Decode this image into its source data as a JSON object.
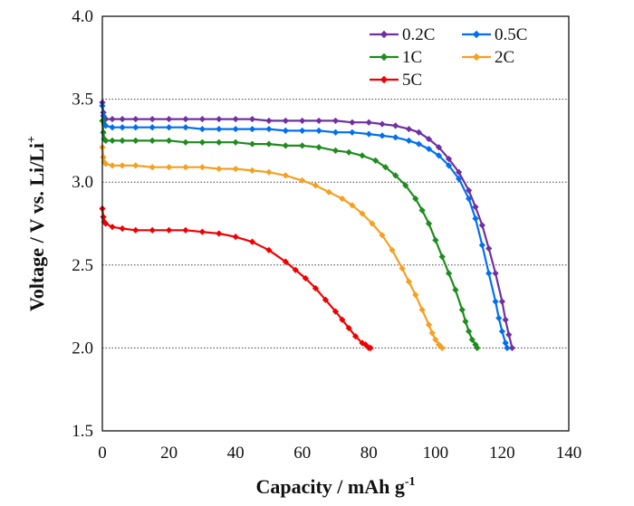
{
  "chart_data": {
    "type": "line",
    "xlabel": "Capacity / mAh g",
    "xlabel_sup": "-1",
    "ylabel": "Voltage / V vs. Li/Li",
    "ylabel_sup": "+",
    "xlim": [
      0,
      140
    ],
    "ylim": [
      1.5,
      4.0
    ],
    "xticks": [
      "0",
      "20",
      "40",
      "60",
      "80",
      "100",
      "120",
      "140"
    ],
    "yticks": [
      "1.5",
      "2.0",
      "2.5",
      "3.0",
      "3.5",
      "4.0"
    ],
    "grid": "horizontal dotted",
    "legend_position": "top-right",
    "series": [
      {
        "name": "0.2C",
        "color": "#7030A0",
        "x": [
          0,
          0.3,
          0.6,
          1,
          3,
          6,
          10,
          15,
          20,
          25,
          30,
          35,
          40,
          45,
          50,
          55,
          60,
          65,
          70,
          75,
          80,
          84,
          88,
          92,
          95,
          98,
          101,
          104,
          107,
          110,
          112,
          114,
          116,
          118,
          120,
          121,
          122,
          123
        ],
        "y": [
          3.48,
          3.42,
          3.39,
          3.38,
          3.38,
          3.38,
          3.38,
          3.38,
          3.38,
          3.38,
          3.38,
          3.38,
          3.38,
          3.38,
          3.37,
          3.37,
          3.37,
          3.37,
          3.37,
          3.36,
          3.36,
          3.35,
          3.34,
          3.32,
          3.3,
          3.26,
          3.21,
          3.14,
          3.06,
          2.95,
          2.85,
          2.74,
          2.6,
          2.45,
          2.28,
          2.17,
          2.08,
          2.0
        ]
      },
      {
        "name": "0.5C",
        "color": "#0070F0",
        "x": [
          0,
          0.3,
          0.6,
          1,
          3,
          6,
          10,
          15,
          20,
          25,
          30,
          35,
          40,
          45,
          50,
          55,
          60,
          65,
          70,
          75,
          80,
          84,
          88,
          92,
          95,
          98,
          101,
          104,
          107,
          110,
          112,
          114,
          116,
          118,
          119,
          120,
          121,
          121.5
        ],
        "y": [
          3.46,
          3.4,
          3.35,
          3.34,
          3.33,
          3.33,
          3.33,
          3.33,
          3.33,
          3.33,
          3.32,
          3.32,
          3.32,
          3.32,
          3.32,
          3.31,
          3.31,
          3.31,
          3.3,
          3.3,
          3.29,
          3.28,
          3.27,
          3.25,
          3.23,
          3.2,
          3.16,
          3.1,
          3.02,
          2.9,
          2.78,
          2.62,
          2.45,
          2.28,
          2.18,
          2.1,
          2.03,
          2.0
        ]
      },
      {
        "name": "1C",
        "color": "#1E8C1E",
        "x": [
          0,
          0.3,
          0.6,
          1,
          3,
          6,
          10,
          15,
          20,
          25,
          30,
          35,
          40,
          45,
          50,
          55,
          60,
          65,
          70,
          74,
          78,
          82,
          85,
          88,
          91,
          94,
          96,
          98,
          100,
          102,
          104,
          106,
          108,
          109,
          110,
          111,
          112,
          112.5
        ],
        "y": [
          3.37,
          3.3,
          3.26,
          3.25,
          3.25,
          3.25,
          3.25,
          3.25,
          3.25,
          3.24,
          3.24,
          3.24,
          3.24,
          3.23,
          3.23,
          3.22,
          3.22,
          3.21,
          3.19,
          3.18,
          3.16,
          3.13,
          3.09,
          3.04,
          2.98,
          2.9,
          2.83,
          2.75,
          2.65,
          2.55,
          2.45,
          2.35,
          2.23,
          2.16,
          2.1,
          2.05,
          2.02,
          2.0
        ]
      },
      {
        "name": "2C",
        "color": "#F5A020",
        "x": [
          0,
          0.3,
          0.6,
          1,
          3,
          6,
          10,
          15,
          20,
          25,
          30,
          35,
          40,
          45,
          50,
          55,
          60,
          64,
          68,
          72,
          75,
          78,
          81,
          84,
          87,
          90,
          92,
          94,
          96,
          98,
          99,
          100,
          101,
          101.5,
          102
        ],
        "y": [
          3.21,
          3.15,
          3.12,
          3.11,
          3.1,
          3.1,
          3.1,
          3.09,
          3.09,
          3.09,
          3.09,
          3.08,
          3.08,
          3.07,
          3.06,
          3.04,
          3.01,
          2.98,
          2.94,
          2.9,
          2.86,
          2.81,
          2.75,
          2.68,
          2.59,
          2.48,
          2.4,
          2.32,
          2.23,
          2.14,
          2.09,
          2.05,
          2.02,
          2.01,
          2.0
        ]
      },
      {
        "name": "5C",
        "color": "#F00000",
        "x": [
          0,
          0.3,
          0.6,
          1,
          3,
          6,
          10,
          15,
          20,
          25,
          30,
          35,
          40,
          45,
          50,
          55,
          58,
          61,
          64,
          67,
          70,
          72,
          74,
          76,
          78,
          79,
          80,
          80.5
        ],
        "y": [
          2.84,
          2.79,
          2.76,
          2.75,
          2.73,
          2.72,
          2.71,
          2.71,
          2.71,
          2.71,
          2.7,
          2.69,
          2.67,
          2.64,
          2.59,
          2.52,
          2.47,
          2.42,
          2.36,
          2.29,
          2.22,
          2.17,
          2.12,
          2.07,
          2.03,
          2.02,
          2.0,
          2.0
        ]
      }
    ]
  }
}
